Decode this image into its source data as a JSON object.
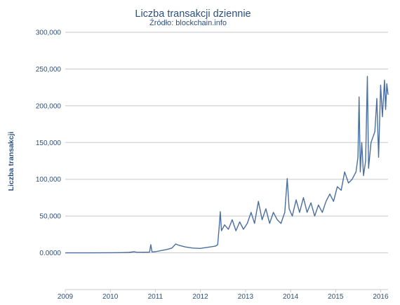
{
  "chart_data": {
    "type": "line",
    "title": "Liczba transakcji dziennie",
    "subtitle": "Źródło: blockchain.info",
    "xlabel": "",
    "ylabel": "Liczba transakcji",
    "x_ticks": [
      "2009",
      "2010",
      "2011",
      "2012",
      "2013",
      "2014",
      "2015",
      "2016"
    ],
    "y_ticks": [
      "0.0000",
      "50,000",
      "100,000",
      "150,000",
      "200,000",
      "250,000",
      "300,000"
    ],
    "ylim": [
      -50000,
      300000
    ],
    "xlim": [
      "2009-01-01",
      "2016-03-01"
    ],
    "grid": true,
    "legend": "none",
    "color": "#4a6ea0",
    "series": [
      {
        "points": [
          [
            "2009-01-01",
            0
          ],
          [
            "2009-07-01",
            0
          ],
          [
            "2010-01-01",
            200
          ],
          [
            "2010-04-01",
            300
          ],
          [
            "2010-06-01",
            500
          ],
          [
            "2010-07-15",
            1500
          ],
          [
            "2010-08-01",
            800
          ],
          [
            "2010-10-01",
            700
          ],
          [
            "2010-11-15",
            900
          ],
          [
            "2010-11-25",
            11000
          ],
          [
            "2010-12-05",
            1200
          ],
          [
            "2011-01-01",
            1500
          ],
          [
            "2011-02-01",
            2500
          ],
          [
            "2011-03-01",
            3500
          ],
          [
            "2011-04-01",
            4500
          ],
          [
            "2011-05-15",
            6500
          ],
          [
            "2011-06-15",
            12000
          ],
          [
            "2011-07-15",
            10000
          ],
          [
            "2011-09-01",
            8000
          ],
          [
            "2011-11-01",
            6500
          ],
          [
            "2012-01-01",
            6000
          ],
          [
            "2012-03-01",
            7500
          ],
          [
            "2012-05-01",
            9000
          ],
          [
            "2012-05-20",
            11000
          ],
          [
            "2012-06-01",
            35000
          ],
          [
            "2012-06-10",
            56000
          ],
          [
            "2012-06-20",
            30000
          ],
          [
            "2012-07-15",
            38000
          ],
          [
            "2012-08-15",
            32000
          ],
          [
            "2012-09-15",
            45000
          ],
          [
            "2012-10-15",
            30000
          ],
          [
            "2012-11-15",
            42000
          ],
          [
            "2012-12-15",
            32000
          ],
          [
            "2013-01-15",
            40000
          ],
          [
            "2013-02-15",
            55000
          ],
          [
            "2013-03-15",
            40000
          ],
          [
            "2013-04-15",
            70000
          ],
          [
            "2013-05-15",
            45000
          ],
          [
            "2013-06-15",
            60000
          ],
          [
            "2013-07-15",
            40000
          ],
          [
            "2013-08-15",
            55000
          ],
          [
            "2013-09-15",
            45000
          ],
          [
            "2013-10-15",
            40000
          ],
          [
            "2013-11-15",
            55000
          ],
          [
            "2013-12-05",
            101000
          ],
          [
            "2013-12-20",
            60000
          ],
          [
            "2014-01-15",
            50000
          ],
          [
            "2014-02-15",
            72000
          ],
          [
            "2014-03-15",
            55000
          ],
          [
            "2014-04-15",
            75000
          ],
          [
            "2014-05-15",
            55000
          ],
          [
            "2014-06-15",
            68000
          ],
          [
            "2014-07-15",
            50000
          ],
          [
            "2014-08-15",
            65000
          ],
          [
            "2014-09-15",
            55000
          ],
          [
            "2014-10-15",
            70000
          ],
          [
            "2014-11-15",
            80000
          ],
          [
            "2014-12-15",
            70000
          ],
          [
            "2015-01-15",
            90000
          ],
          [
            "2015-02-15",
            85000
          ],
          [
            "2015-03-15",
            110000
          ],
          [
            "2015-04-15",
            95000
          ],
          [
            "2015-05-15",
            100000
          ],
          [
            "2015-06-15",
            110000
          ],
          [
            "2015-07-01",
            130000
          ],
          [
            "2015-07-10",
            212000
          ],
          [
            "2015-07-20",
            110000
          ],
          [
            "2015-08-01",
            150000
          ],
          [
            "2015-08-15",
            105000
          ],
          [
            "2015-09-01",
            125000
          ],
          [
            "2015-09-15",
            240000
          ],
          [
            "2015-09-25",
            115000
          ],
          [
            "2015-10-15",
            150000
          ],
          [
            "2015-11-15",
            165000
          ],
          [
            "2015-12-01",
            210000
          ],
          [
            "2015-12-15",
            130000
          ],
          [
            "2016-01-01",
            228000
          ],
          [
            "2016-01-15",
            185000
          ],
          [
            "2016-02-01",
            235000
          ],
          [
            "2016-02-10",
            195000
          ],
          [
            "2016-02-20",
            230000
          ],
          [
            "2016-03-01",
            215000
          ]
        ]
      }
    ]
  }
}
